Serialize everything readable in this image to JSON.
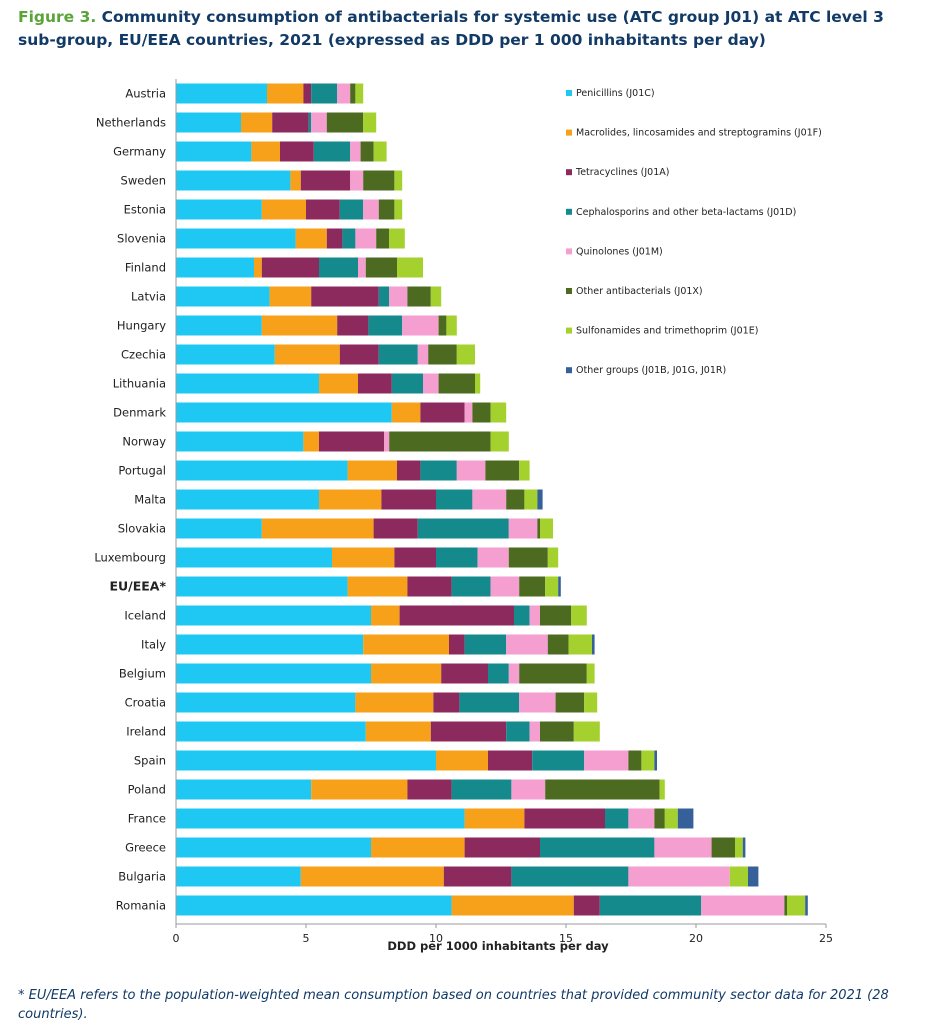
{
  "figure": {
    "label": "Figure 3.",
    "title": "Community consumption of antibacterials for systemic use (ATC group J01) at ATC level 3 sub-group, EU/EEA countries, 2021 (expressed as DDD per 1 000 inhabitants per day)"
  },
  "footnote": "* EU/EEA refers to the population-weighted mean consumption based on countries that provided community sector data for 2021 (28 countries).",
  "chart_data": {
    "type": "bar",
    "orientation": "horizontal",
    "stacked": true,
    "title": "",
    "xlabel": "DDD per 1000 inhabitants per day",
    "ylabel": "",
    "xlim": [
      0,
      25
    ],
    "xticks": [
      "0",
      "5",
      "10",
      "15",
      "20",
      "25"
    ],
    "grid": false,
    "legend_position": "right",
    "categories": [
      "Austria",
      "Netherlands",
      "Germany",
      "Sweden",
      "Estonia",
      "Slovenia",
      "Finland",
      "Latvia",
      "Hungary",
      "Czechia",
      "Lithuania",
      "Denmark",
      "Norway",
      "Portugal",
      "Malta",
      "Slovakia",
      "Luxembourg",
      "EU/EEA*",
      "Iceland",
      "Italy",
      "Belgium",
      "Croatia",
      "Ireland",
      "Spain",
      "Poland",
      "France",
      "Greece",
      "Bulgaria",
      "Romania"
    ],
    "highlight_category": "EU/EEA*",
    "series": [
      {
        "name": "Penicillins (J01C)",
        "color": "#1ec8f2",
        "values": [
          3.5,
          2.5,
          2.9,
          4.4,
          3.3,
          4.6,
          3.0,
          3.6,
          3.3,
          3.8,
          5.5,
          8.3,
          4.9,
          6.6,
          5.5,
          3.3,
          6.0,
          6.6,
          7.5,
          7.2,
          7.5,
          6.9,
          7.3,
          10.0,
          5.2,
          11.1,
          7.5,
          4.8,
          10.6
        ]
      },
      {
        "name": "Macrolides, lincosamides and streptogramins (J01F)",
        "color": "#f7a11a",
        "values": [
          1.4,
          1.2,
          1.1,
          0.4,
          1.7,
          1.2,
          0.3,
          1.6,
          2.9,
          2.5,
          1.5,
          1.1,
          0.6,
          1.9,
          2.4,
          4.3,
          2.4,
          2.3,
          1.1,
          3.3,
          2.7,
          3.0,
          2.5,
          2.0,
          3.7,
          2.3,
          3.6,
          5.5,
          4.7
        ]
      },
      {
        "name": "Tetracyclines (J01A)",
        "color": "#8c2a5e",
        "values": [
          0.3,
          1.4,
          1.3,
          1.9,
          1.3,
          0.6,
          2.2,
          2.6,
          1.2,
          1.5,
          1.3,
          1.7,
          2.5,
          0.9,
          2.1,
          1.7,
          1.6,
          1.7,
          4.4,
          0.6,
          1.8,
          1.0,
          2.9,
          1.7,
          1.7,
          3.1,
          2.9,
          2.6,
          1.0
        ]
      },
      {
        "name": "Cephalosporins and other beta-lactams (J01D)",
        "color": "#148a8d",
        "values": [
          1.0,
          0.1,
          1.4,
          0.0,
          0.9,
          0.5,
          1.5,
          0.4,
          1.3,
          1.5,
          1.2,
          0.0,
          0.0,
          1.4,
          1.4,
          3.5,
          1.6,
          1.5,
          0.6,
          1.6,
          0.8,
          2.3,
          0.9,
          2.0,
          2.3,
          0.9,
          4.4,
          4.5,
          3.9
        ]
      },
      {
        "name": "Quinolones (J01M)",
        "color": "#f59ed0",
        "values": [
          0.5,
          0.6,
          0.4,
          0.5,
          0.6,
          0.8,
          0.3,
          0.7,
          1.4,
          0.4,
          0.6,
          0.3,
          0.2,
          1.1,
          1.3,
          1.1,
          1.2,
          1.1,
          0.4,
          1.6,
          0.4,
          1.4,
          0.4,
          1.7,
          1.3,
          1.0,
          2.2,
          3.9,
          3.2
        ]
      },
      {
        "name": "Other antibacterials (J01X)",
        "color": "#4c6a20",
        "values": [
          0.2,
          1.4,
          0.5,
          1.2,
          0.6,
          0.5,
          1.2,
          0.9,
          0.3,
          1.1,
          1.4,
          0.7,
          3.9,
          1.3,
          0.7,
          0.1,
          1.5,
          1.0,
          1.2,
          0.8,
          2.6,
          1.1,
          1.3,
          0.5,
          4.4,
          0.4,
          0.9,
          0.0,
          0.1
        ]
      },
      {
        "name": "Sulfonamides and trimethoprim (J01E)",
        "color": "#a5d12e",
        "values": [
          0.3,
          0.5,
          0.5,
          0.3,
          0.3,
          0.6,
          1.0,
          0.4,
          0.4,
          0.7,
          0.2,
          0.6,
          0.7,
          0.4,
          0.5,
          0.5,
          0.4,
          0.5,
          0.6,
          0.9,
          0.3,
          0.5,
          1.0,
          0.5,
          0.2,
          0.5,
          0.3,
          0.7,
          0.7
        ]
      },
      {
        "name": "Other groups (J01B, J01G, J01R)",
        "color": "#36609a",
        "values": [
          0,
          0,
          0,
          0,
          0,
          0,
          0,
          0,
          0,
          0,
          0,
          0,
          0,
          0,
          0.2,
          0,
          0,
          0.1,
          0,
          0.1,
          0,
          0,
          0,
          0.1,
          0,
          0.6,
          0.1,
          0.4,
          0.1
        ]
      }
    ]
  }
}
